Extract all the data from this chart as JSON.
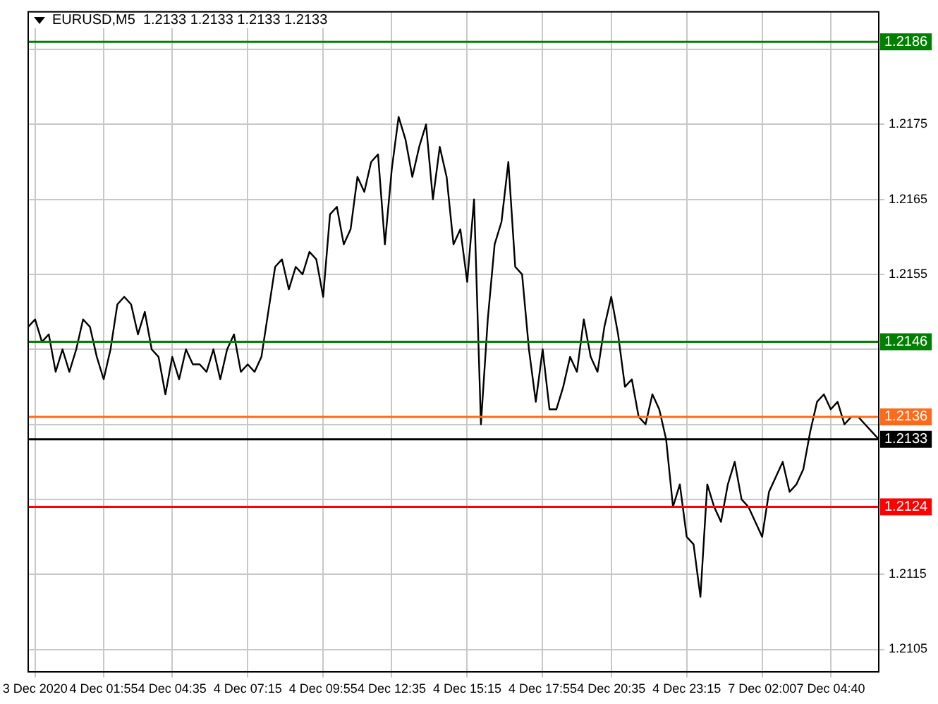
{
  "chart_data": {
    "type": "line",
    "title": "EURUSD,M5  1.2133 1.2133 1.2133 1.2133",
    "categories": [
      null,
      "3 Dec 2020",
      null,
      null,
      null,
      null,
      null,
      null,
      null,
      null,
      null,
      "4 Dec 01:55",
      null,
      null,
      null,
      null,
      null,
      null,
      null,
      null,
      null,
      "4 Dec 04:35",
      null,
      null,
      null,
      null,
      null,
      null,
      null,
      null,
      null,
      null,
      "4 Dec 07:15",
      null,
      null,
      null,
      null,
      null,
      null,
      null,
      null,
      null,
      null,
      "4 Dec 09:55",
      null,
      null,
      null,
      null,
      null,
      null,
      null,
      null,
      null,
      "4 Dec 12:35",
      null,
      null,
      null,
      null,
      null,
      null,
      null,
      null,
      null,
      null,
      "4 Dec 15:15",
      null,
      null,
      null,
      null,
      null,
      null,
      null,
      null,
      null,
      null,
      "4 Dec 17:55",
      null,
      null,
      null,
      null,
      null,
      null,
      null,
      null,
      null,
      "4 Dec 20:35",
      null,
      null,
      null,
      null,
      null,
      null,
      null,
      null,
      null,
      null,
      "4 Dec 23:15",
      null,
      null,
      null,
      null,
      null,
      null,
      null,
      null,
      null,
      null,
      "7 Dec 02:00",
      null,
      null,
      null,
      null,
      null,
      null,
      null,
      null,
      null,
      "7 Dec 04:40",
      null,
      null,
      null,
      null,
      null,
      null,
      null
    ],
    "series": [
      {
        "color": "#000000",
        "values": [
          1.2148,
          1.2149,
          1.2146,
          1.2147,
          1.2142,
          1.2145,
          1.2142,
          1.2145,
          1.2149,
          1.2148,
          1.2144,
          1.2141,
          1.2145,
          1.2151,
          1.2152,
          1.2151,
          1.2147,
          1.215,
          1.2145,
          1.2144,
          1.2139,
          1.2144,
          1.2141,
          1.2145,
          1.2143,
          1.2143,
          1.2142,
          1.2145,
          1.2141,
          1.2145,
          1.2147,
          1.2142,
          1.2143,
          1.2142,
          1.2144,
          1.215,
          1.2156,
          1.2157,
          1.2153,
          1.2156,
          1.2155,
          1.2158,
          1.2157,
          1.2152,
          1.2163,
          1.2164,
          1.2159,
          1.2161,
          1.2168,
          1.2166,
          1.217,
          1.2171,
          1.2159,
          1.2169,
          1.2176,
          1.2173,
          1.2168,
          1.2172,
          1.2175,
          1.2165,
          1.2172,
          1.2168,
          1.2159,
          1.2161,
          1.2154,
          1.2165,
          1.2135,
          1.2149,
          1.2159,
          1.2162,
          1.217,
          1.2156,
          1.2155,
          1.2145,
          1.2138,
          1.2145,
          1.2137,
          1.2137,
          1.214,
          1.2144,
          1.2142,
          1.2149,
          1.2144,
          1.2142,
          1.2148,
          1.2152,
          1.2147,
          1.214,
          1.2141,
          1.2136,
          1.2135,
          1.2139,
          1.2137,
          1.2133,
          1.2124,
          1.2127,
          1.212,
          1.2119,
          1.2112,
          1.2127,
          1.2124,
          1.2122,
          1.2127,
          1.213,
          1.2125,
          1.2124,
          1.2122,
          1.212,
          1.2126,
          1.2128,
          1.213,
          1.2126,
          1.2127,
          1.2129,
          1.2134,
          1.2138,
          1.2139,
          1.2137,
          1.2138,
          1.2135,
          1.2136,
          1.2136,
          1.2135,
          1.2134,
          1.2133
        ]
      }
    ],
    "ylim": [
      1.2102,
      1.219
    ],
    "yticks": [
      1.2105,
      1.2115,
      {
        "value": 1.2125,
        "label": null
      },
      {
        "value": 1.2135,
        "label": null
      },
      {
        "value": 1.2145,
        "label": null
      },
      1.2155,
      1.2165,
      1.2175,
      {
        "value": 1.2185,
        "label": null
      }
    ],
    "ref_lines": [
      {
        "axis": "y",
        "value": 1.2186,
        "label": "1.2186",
        "color": "#008000"
      },
      {
        "axis": "y",
        "value": 1.2146,
        "label": "1.2146",
        "color": "#008000"
      },
      {
        "axis": "y",
        "value": 1.2136,
        "label": "1.2136",
        "color": "#ff6a1a"
      },
      {
        "axis": "y",
        "value": 1.2124,
        "label": "1.2124",
        "color": "#ff0000"
      },
      {
        "axis": "y",
        "value": 1.2133,
        "label": "1.2133",
        "color": "#000000"
      }
    ],
    "grid": true,
    "legend": false,
    "marker": "none",
    "line_style": "solid"
  }
}
